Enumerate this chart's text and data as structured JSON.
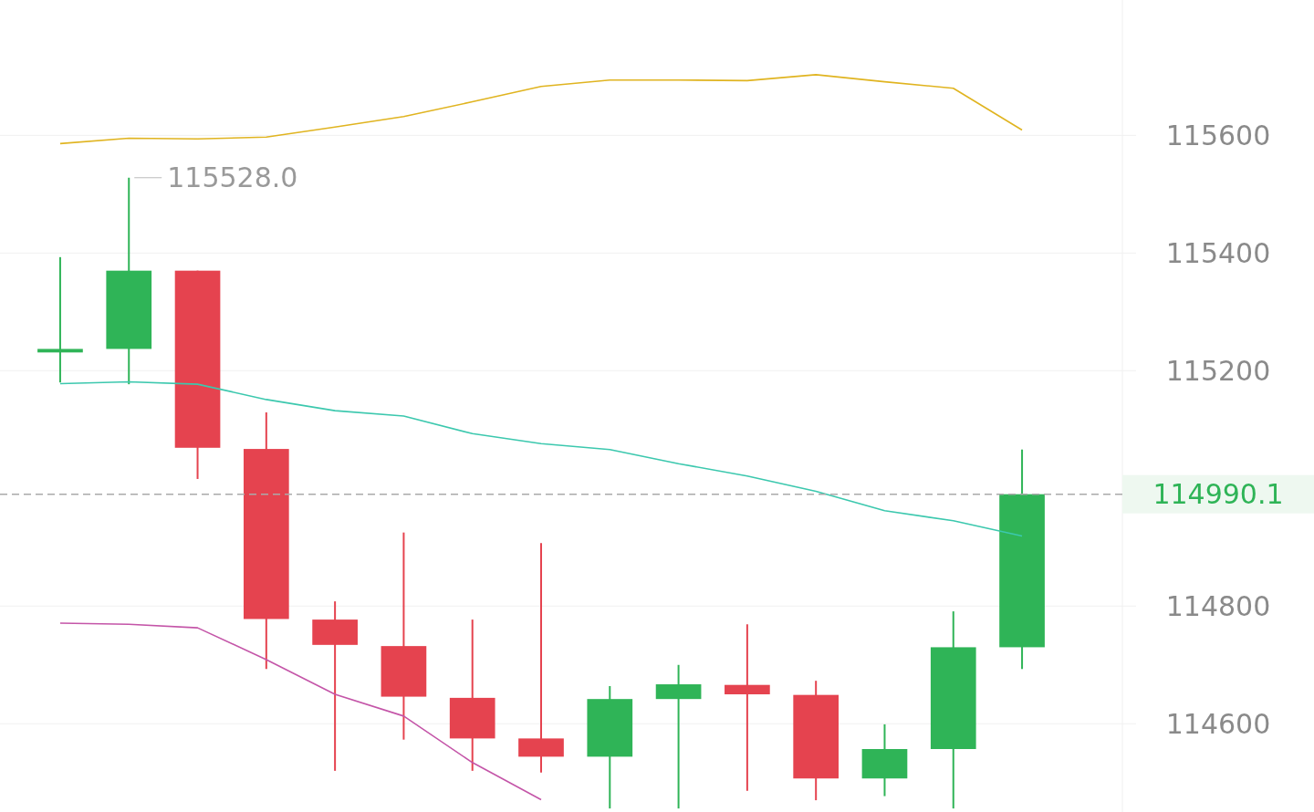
{
  "chart_data": {
    "type": "candlestick",
    "categories": [
      null,
      null,
      null,
      null,
      null,
      null,
      null,
      null,
      null,
      null,
      null,
      null,
      null,
      null,
      null
    ],
    "ohlc": [
      [
        115231,
        115393,
        115180,
        115237
      ],
      [
        115237,
        115528,
        115177,
        115370
      ],
      [
        115370,
        115370,
        115016,
        115069
      ],
      [
        115067,
        115129,
        114693,
        114778
      ],
      [
        114777,
        114808,
        114520,
        114734
      ],
      [
        114732,
        114925,
        114573,
        114646
      ],
      [
        114644,
        114777,
        114520,
        114575
      ],
      [
        114575,
        114907,
        114517,
        114544
      ],
      [
        114544,
        114664,
        114456,
        114642
      ],
      [
        114642,
        114700,
        114456,
        114667
      ],
      [
        114666,
        114769,
        114486,
        114650
      ],
      [
        114649,
        114673,
        114470,
        114507
      ],
      [
        114507,
        114599,
        114477,
        114557
      ],
      [
        114557,
        114791,
        114456,
        114730
      ],
      [
        114730,
        115066,
        114693,
        114990.1
      ]
    ],
    "colors": [
      "#2fb457",
      "#2fb457",
      "#e5434f",
      "#e5434f",
      "#e5434f",
      "#e5434f",
      "#e5434f",
      "#e5434f",
      "#2fb457",
      "#2fb457",
      "#e5434f",
      "#e5434f",
      "#2fb457",
      "#2fb457",
      "#2fb457"
    ],
    "series": [
      {
        "type": "line",
        "color": "#e0b420",
        "values": [
          115586,
          115595,
          115594,
          115597,
          115614,
          115632,
          115657,
          115683,
          115694,
          115694,
          115693,
          115703,
          115691,
          115680,
          115609
        ]
      },
      {
        "type": "line",
        "color": "#3cc8ae",
        "values": [
          115178,
          115181,
          115177,
          115151,
          115132,
          115123,
          115093,
          115076,
          115066,
          115042,
          115021,
          114995,
          114962,
          114945,
          114919
        ]
      },
      {
        "type": "line",
        "color": "#c455a8",
        "values": [
          114771,
          114769,
          114763,
          114709,
          114650,
          114613,
          114534,
          114471,
          null,
          null,
          null,
          null,
          null,
          null,
          null
        ]
      }
    ],
    "ylim": [
      114450,
      115830
    ],
    "yticks": [
      114600,
      114800,
      115200,
      115400,
      115600
    ],
    "grid": "y",
    "ref_lines": [
      {
        "axis": "y",
        "value": 114990.1,
        "label": "114990.1",
        "color": "#aaaaaa",
        "line_style": "dashed"
      }
    ],
    "annotations": [
      "115528.0"
    ]
  }
}
